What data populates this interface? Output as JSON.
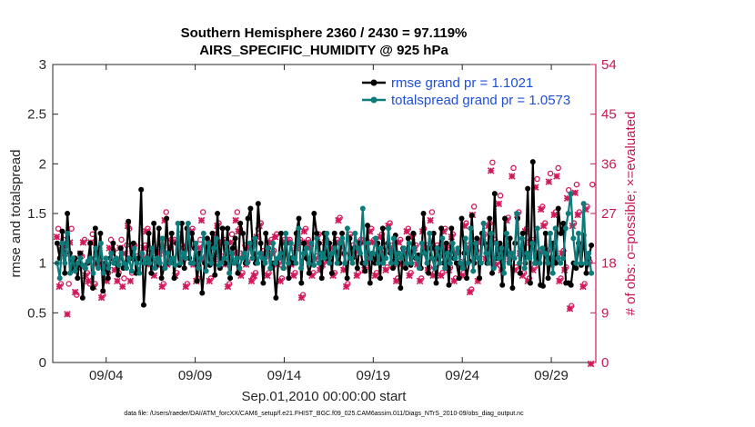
{
  "chart_data": {
    "type": "line",
    "title": "Southern Hemisphere 2360 / 2430 = 97.119%",
    "subtitle": "AIRS_SPECIFIC_HUMIDITY @ 925 hPa",
    "xlabel": "Sep.01,2010 00:00:00 start",
    "ylabel": "rmse and totalspread",
    "ylabel_right": "# of obs: o=possible; ×=evaluated",
    "xlim": [
      1,
      31.5
    ],
    "ylim": [
      0,
      3
    ],
    "ylim_right": [
      0,
      54
    ],
    "x_ticks": [
      4,
      9,
      14,
      19,
      24,
      29
    ],
    "x_tick_labels": [
      "09/04",
      "09/09",
      "09/14",
      "09/19",
      "09/24",
      "09/29"
    ],
    "y_ticks": [
      0,
      0.5,
      1,
      1.5,
      2,
      2.5,
      3
    ],
    "y_tick_labels": [
      "0",
      "0.5",
      "1",
      "1.5",
      "2",
      "2.5",
      "3"
    ],
    "y_ticks_right": [
      0,
      9,
      18,
      27,
      36,
      45,
      54
    ],
    "y_tick_labels_right": [
      "0",
      "9",
      "18",
      "27",
      "36",
      "45",
      "54"
    ],
    "legend_position": "top-right",
    "footnote": "data file: /Users/raeder/DAI/ATM_forcXX/CAM6_setup/f.e21.FHIST_BGC.f09_025.CAM6assim.011/Diags_NTrS_2010-09/obs_diag_output.nc",
    "colors": {
      "rmse": "#000000",
      "spread": "#0e7b7b",
      "obs": "#d0185a",
      "legend_text": "#1f4fd8"
    },
    "series": [
      {
        "name": "rmse grand pr = 1.1021",
        "values": [
          1.2,
          1.05,
          1.32,
          0.9,
          1.5,
          1.1,
          0.95,
          1.05,
          0.85,
          1.1,
          0.65,
          0.95,
          1.0,
          1.2,
          0.75,
          1.35,
          1.0,
          1.3,
          0.72,
          1.0,
          0.85,
          1.05,
          1.2,
          1.0,
          0.88,
          1.15,
          0.95,
          1.0,
          1.42,
          1.05,
          1.2,
          0.9,
          1.05,
          1.74,
          0.58,
          1.0,
          1.3,
          0.9,
          1.4,
          0.98,
          1.35,
          0.85,
          0.95,
          1.45,
          1.0,
          1.3,
          0.85,
          1.2,
          0.98,
          1.4,
          0.95,
          1.35,
          1.05,
          1.3,
          1.15,
          0.82,
          1.1,
          0.7,
          1.0,
          1.25,
          0.98,
          1.3,
          0.88,
          1.5,
          0.95,
          1.35,
          1.0,
          1.35,
          0.85,
          1.15,
          1.25,
          0.9,
          1.4,
          1.3,
          1.0,
          1.45,
          1.55,
          1.1,
          1.0,
          1.6,
          1.2,
          0.8,
          1.3,
          1.15,
          0.95,
          1.0,
          0.65,
          1.05,
          1.3,
          0.95,
          1.2,
          0.85,
          1.05,
          1.0,
          1.3,
          1.45,
          0.8,
          1.2,
          1.05,
          0.9,
          1.0,
          1.5,
          1.3,
          1.2,
          0.85,
          1.3,
          1.05,
          1.2,
          0.9,
          1.3,
          1.1,
          1.0,
          1.3,
          1.1,
          0.85,
          1.25,
          1.05,
          1.15,
          0.95,
          1.2,
          1.0,
          0.92,
          1.38,
          0.8,
          1.1,
          1.0,
          1.2,
          0.85,
          1.35,
          1.05,
          1.2,
          1.1,
          0.95,
          1.28,
          1.0,
          0.75,
          1.15,
          0.95,
          1.25,
          0.98,
          1.3,
          1.05,
          1.08,
          0.95,
          1.5,
          1.1,
          0.9,
          1.15,
          1.3,
          0.8,
          1.05,
          1.35,
          1.0,
          1.2,
          0.78,
          1.35,
          1.05,
          1.0,
          0.85,
          1.45,
          1.1,
          0.85,
          1.02,
          1.48,
          1.0,
          1.25,
          0.85,
          1.3,
          1.2,
          1.0,
          1.45,
          0.9,
          1.7,
          1.05,
          1.2,
          0.78,
          1.45,
          1.1,
          1.25,
          0.75,
          1.2,
          1.45,
          0.9,
          1.3,
          1.0,
          1.75,
          0.8,
          2.02,
          1.0,
          1.1,
          0.78,
          0.77,
          1.3,
          0.85,
          1.05,
          1.2,
          1.0,
          1.55,
          1.3,
          1.4,
          0.8,
          0.8,
          0.78,
          1.0,
          0.95,
          1.2,
          0.98,
          1.28,
          0.9,
          1.05,
          1.18
        ]
      },
      {
        "name": "totalspread grand pr = 1.0573",
        "values": [
          1.0,
          0.85,
          1.2,
          1.0,
          1.3,
          0.9,
          1.05,
          0.92,
          1.0,
          1.05,
          0.98,
          0.95,
          1.02,
          1.05,
          0.9,
          1.15,
          0.95,
          1.2,
          0.9,
          1.05,
          0.95,
          1.1,
          1.0,
          1.05,
          0.98,
          1.1,
          1.0,
          0.95,
          1.05,
          0.92,
          1.15,
          1.0,
          0.9,
          1.1,
          1.0,
          1.05,
          1.0,
          1.15,
          0.95,
          1.05,
          1.0,
          1.25,
          0.95,
          1.1,
          1.0,
          1.05,
          0.98,
          1.4,
          1.0,
          1.1,
          1.05,
          1.4,
          1.0,
          1.0,
          1.2,
          0.95,
          1.05,
          1.3,
          0.92,
          1.2,
          1.0,
          1.15,
          1.25,
          0.98,
          1.0,
          1.05,
          1.2,
          0.9,
          1.1,
          1.0,
          1.05,
          0.95,
          1.05,
          1.1,
          1.0,
          1.2,
          1.05,
          1.25,
          1.0,
          1.1,
          1.05,
          1.0,
          1.15,
          0.95,
          1.2,
          1.0,
          1.05,
          1.1,
          0.95,
          1.3,
          1.0,
          1.2,
          1.05,
          1.0,
          1.35,
          0.95,
          1.1,
          1.15,
          1.0,
          1.2,
          0.98,
          1.25,
          1.0,
          1.1,
          1.05,
          1.3,
          1.0,
          1.1,
          1.15,
          1.0,
          1.2,
          1.25,
          1.0,
          1.35,
          1.05,
          1.0,
          1.3,
          1.15,
          1.1,
          1.55,
          1.0,
          1.2,
          1.05,
          1.1,
          1.25,
          1.0,
          1.15,
          1.0,
          1.05,
          1.35,
          1.0,
          1.25,
          1.0,
          1.1,
          1.05,
          1.15,
          1.0,
          1.2,
          1.0,
          1.15,
          1.05,
          0.95,
          1.2,
          1.1,
          1.0,
          1.3,
          1.05,
          0.95,
          1.15,
          1.0,
          1.25,
          0.95,
          1.1,
          1.0,
          1.2,
          1.05,
          1.15,
          1.0,
          0.95,
          1.25,
          1.0,
          1.35,
          0.92,
          1.2,
          1.05,
          1.0,
          1.4,
          1.1,
          1.0,
          1.3,
          0.95,
          1.2,
          1.05,
          1.15,
          0.9,
          1.3,
          1.0,
          1.1,
          1.05,
          1.5,
          1.0,
          1.25,
          0.95,
          1.1,
          1.05,
          1.2,
          1.0,
          1.35,
          1.0,
          1.15,
          1.1,
          1.0,
          1.3,
          0.9,
          1.35,
          1.05,
          1.0,
          1.05,
          1.35,
          1.5,
          1.7,
          1.25,
          1.0,
          1.3,
          1.0,
          1.6,
          1.0,
          1.1,
          0.9
        ]
      }
    ],
    "obs_possible": {
      "name": "possible (circles)",
      "values": [
        24,
        14,
        22,
        21,
        14,
        24,
        17,
        12,
        17,
        19,
        22,
        16,
        14,
        23,
        14,
        18,
        19,
        12,
        17,
        16,
        22,
        20,
        18,
        16,
        22,
        15,
        21,
        24,
        16,
        21,
        19,
        18,
        19,
        21,
        24,
        19,
        20,
        17,
        18,
        20,
        14,
        27,
        18,
        22,
        22,
        16,
        23,
        21,
        20,
        14,
        21,
        24,
        18,
        15,
        22,
        27,
        19,
        20,
        15,
        22,
        23,
        25,
        19,
        22,
        18,
        14,
        23,
        20,
        27,
        24,
        16,
        21,
        18,
        21,
        15,
        16,
        24,
        25,
        20,
        19,
        16,
        22,
        20,
        23,
        18,
        15,
        22,
        22,
        22,
        18,
        16,
        21,
        22,
        12,
        24,
        22,
        21,
        16,
        19,
        23,
        17,
        18,
        22,
        19,
        21,
        16,
        22,
        26,
        20,
        17,
        14,
        23,
        21,
        20,
        16,
        22,
        22,
        17,
        19,
        24,
        22,
        16,
        19,
        23,
        20,
        17,
        25,
        21,
        18,
        15,
        22,
        18,
        20,
        24,
        16,
        23,
        21,
        18,
        15,
        24,
        21,
        17,
        27,
        16,
        21,
        19,
        16,
        24,
        21,
        17,
        23,
        15,
        20,
        18,
        16,
        25,
        21,
        13,
        28,
        20,
        15,
        22,
        23,
        19,
        25,
        36,
        22,
        18,
        30,
        17,
        21,
        26,
        19,
        35,
        17,
        27,
        20,
        16,
        24,
        15,
        22,
        17,
        33,
        20,
        28,
        25,
        20,
        34,
        18,
        27,
        35,
        15,
        20,
        17,
        31,
        10,
        25,
        32,
        27,
        21,
        14,
        28,
        18,
        32
      ]
    },
    "obs_evaluated": {
      "name": "evaluated (crosses)",
      "values": [
        23,
        14,
        21,
        20,
        9,
        22,
        17,
        13,
        18,
        20,
        22,
        16,
        15,
        22,
        14,
        18,
        18,
        12,
        17,
        15,
        21,
        20,
        17,
        15,
        21,
        14,
        20,
        25,
        15,
        21,
        19,
        17,
        19,
        21,
        24,
        18,
        20,
        16,
        18,
        20,
        14,
        26,
        18,
        21,
        22,
        16,
        22,
        21,
        19,
        14,
        21,
        24,
        18,
        15,
        21,
        26,
        19,
        20,
        15,
        22,
        23,
        25,
        19,
        22,
        18,
        14,
        22,
        20,
        26,
        24,
        16,
        20,
        18,
        21,
        15,
        16,
        23,
        25,
        20,
        19,
        16,
        22,
        20,
        23,
        18,
        15,
        22,
        22,
        22,
        18,
        16,
        21,
        22,
        12,
        24,
        22,
        21,
        16,
        19,
        23,
        17,
        18,
        22,
        19,
        21,
        16,
        22,
        26,
        20,
        17,
        14,
        23,
        21,
        20,
        16,
        22,
        22,
        17,
        19,
        24,
        22,
        16,
        19,
        23,
        20,
        17,
        25,
        21,
        18,
        15,
        22,
        18,
        20,
        24,
        16,
        23,
        21,
        18,
        15,
        24,
        21,
        17,
        26,
        16,
        21,
        19,
        16,
        24,
        21,
        17,
        23,
        15,
        20,
        18,
        16,
        25,
        21,
        13,
        27,
        20,
        15,
        22,
        23,
        19,
        25,
        35,
        22,
        18,
        29,
        17,
        21,
        26,
        19,
        34,
        17,
        27,
        20,
        16,
        24,
        15,
        22,
        17,
        32,
        20,
        28,
        25,
        20,
        33,
        18,
        27,
        34,
        15,
        20,
        17,
        30,
        10,
        25,
        31,
        27,
        21,
        14,
        28,
        18,
        0
      ]
    }
  }
}
